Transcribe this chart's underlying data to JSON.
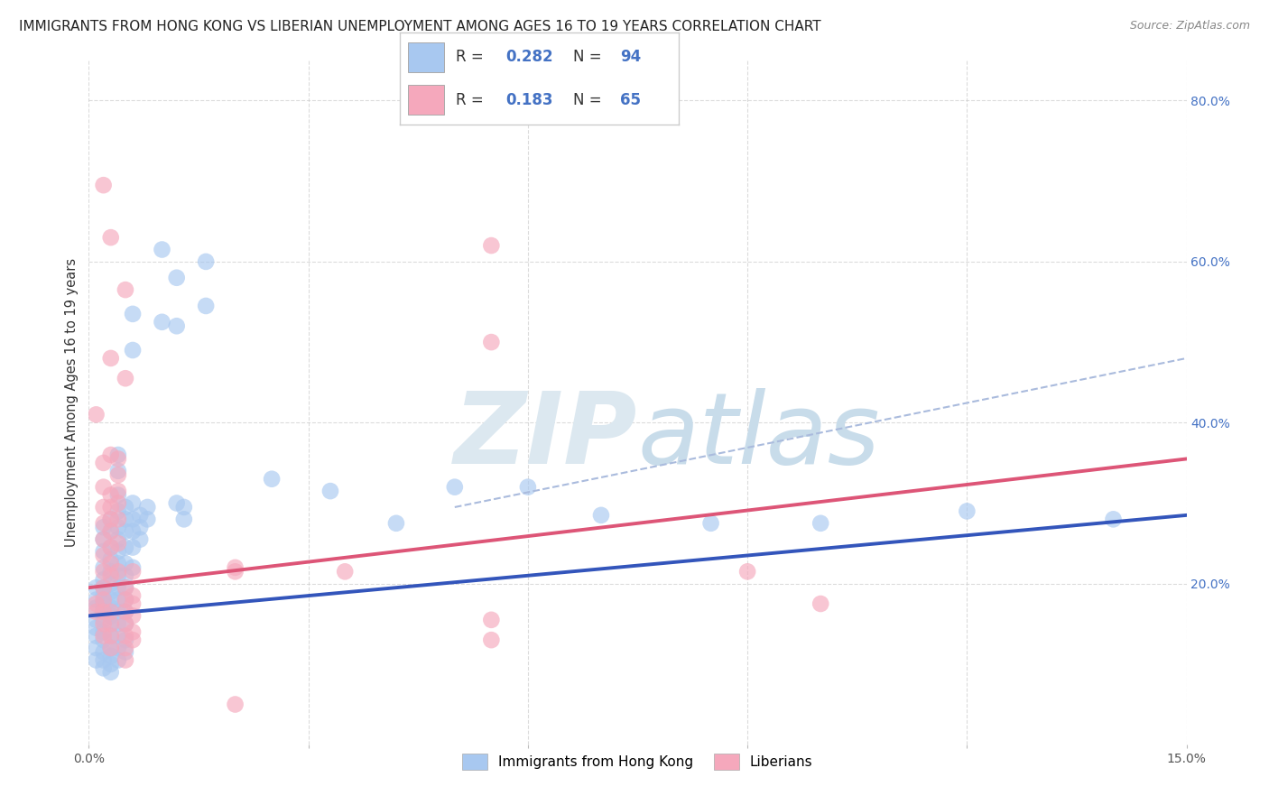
{
  "title": "IMMIGRANTS FROM HONG KONG VS LIBERIAN UNEMPLOYMENT AMONG AGES 16 TO 19 YEARS CORRELATION CHART",
  "source": "Source: ZipAtlas.com",
  "ylabel": "Unemployment Among Ages 16 to 19 years",
  "xlim": [
    0.0,
    0.15
  ],
  "ylim": [
    0.0,
    0.85
  ],
  "xticks": [
    0.0,
    0.03,
    0.06,
    0.09,
    0.12,
    0.15
  ],
  "xtick_labels": [
    "0.0%",
    "",
    "",
    "",
    "",
    "15.0%"
  ],
  "ytick_labels": [
    "20.0%",
    "40.0%",
    "60.0%",
    "80.0%"
  ],
  "yticks": [
    0.2,
    0.4,
    0.6,
    0.8
  ],
  "hk_color": "#a8c8f0",
  "lib_color": "#f5a8bc",
  "hk_line_color": "#3355bb",
  "lib_line_color": "#dd5577",
  "dash_color": "#aabbdd",
  "background_color": "#ffffff",
  "grid_color": "#cccccc",
  "watermark_color": "#d8e4f0",
  "hk_line": [
    0.0,
    0.16,
    0.15,
    0.285
  ],
  "lib_line": [
    0.0,
    0.195,
    0.15,
    0.355
  ],
  "dash_line": [
    0.05,
    0.295,
    0.15,
    0.48
  ],
  "hk_scatter": [
    [
      0.001,
      0.195
    ],
    [
      0.001,
      0.18
    ],
    [
      0.001,
      0.17
    ],
    [
      0.001,
      0.155
    ],
    [
      0.001,
      0.145
    ],
    [
      0.001,
      0.135
    ],
    [
      0.001,
      0.12
    ],
    [
      0.001,
      0.105
    ],
    [
      0.002,
      0.27
    ],
    [
      0.002,
      0.255
    ],
    [
      0.002,
      0.24
    ],
    [
      0.002,
      0.22
    ],
    [
      0.002,
      0.205
    ],
    [
      0.002,
      0.195
    ],
    [
      0.002,
      0.185
    ],
    [
      0.002,
      0.175
    ],
    [
      0.002,
      0.165
    ],
    [
      0.002,
      0.155
    ],
    [
      0.002,
      0.14
    ],
    [
      0.002,
      0.13
    ],
    [
      0.002,
      0.115
    ],
    [
      0.002,
      0.105
    ],
    [
      0.002,
      0.095
    ],
    [
      0.003,
      0.28
    ],
    [
      0.003,
      0.265
    ],
    [
      0.003,
      0.245
    ],
    [
      0.003,
      0.23
    ],
    [
      0.003,
      0.215
    ],
    [
      0.003,
      0.2
    ],
    [
      0.003,
      0.19
    ],
    [
      0.003,
      0.18
    ],
    [
      0.003,
      0.17
    ],
    [
      0.003,
      0.16
    ],
    [
      0.003,
      0.15
    ],
    [
      0.003,
      0.135
    ],
    [
      0.003,
      0.12
    ],
    [
      0.003,
      0.11
    ],
    [
      0.003,
      0.1
    ],
    [
      0.003,
      0.09
    ],
    [
      0.004,
      0.36
    ],
    [
      0.004,
      0.34
    ],
    [
      0.004,
      0.31
    ],
    [
      0.004,
      0.29
    ],
    [
      0.004,
      0.27
    ],
    [
      0.004,
      0.255
    ],
    [
      0.004,
      0.24
    ],
    [
      0.004,
      0.225
    ],
    [
      0.004,
      0.21
    ],
    [
      0.004,
      0.195
    ],
    [
      0.004,
      0.18
    ],
    [
      0.004,
      0.165
    ],
    [
      0.004,
      0.15
    ],
    [
      0.004,
      0.135
    ],
    [
      0.004,
      0.12
    ],
    [
      0.004,
      0.105
    ],
    [
      0.005,
      0.295
    ],
    [
      0.005,
      0.28
    ],
    [
      0.005,
      0.265
    ],
    [
      0.005,
      0.245
    ],
    [
      0.005,
      0.225
    ],
    [
      0.005,
      0.21
    ],
    [
      0.005,
      0.195
    ],
    [
      0.005,
      0.18
    ],
    [
      0.005,
      0.165
    ],
    [
      0.005,
      0.15
    ],
    [
      0.005,
      0.13
    ],
    [
      0.005,
      0.115
    ],
    [
      0.006,
      0.535
    ],
    [
      0.006,
      0.49
    ],
    [
      0.006,
      0.3
    ],
    [
      0.006,
      0.28
    ],
    [
      0.006,
      0.265
    ],
    [
      0.006,
      0.245
    ],
    [
      0.006,
      0.22
    ],
    [
      0.007,
      0.285
    ],
    [
      0.007,
      0.27
    ],
    [
      0.007,
      0.255
    ],
    [
      0.008,
      0.295
    ],
    [
      0.008,
      0.28
    ],
    [
      0.01,
      0.615
    ],
    [
      0.01,
      0.525
    ],
    [
      0.012,
      0.58
    ],
    [
      0.012,
      0.52
    ],
    [
      0.012,
      0.3
    ],
    [
      0.013,
      0.295
    ],
    [
      0.013,
      0.28
    ],
    [
      0.016,
      0.6
    ],
    [
      0.016,
      0.545
    ],
    [
      0.025,
      0.33
    ],
    [
      0.033,
      0.315
    ],
    [
      0.042,
      0.275
    ],
    [
      0.05,
      0.32
    ],
    [
      0.06,
      0.32
    ],
    [
      0.07,
      0.285
    ],
    [
      0.085,
      0.275
    ],
    [
      0.1,
      0.275
    ],
    [
      0.12,
      0.29
    ],
    [
      0.14,
      0.28
    ]
  ],
  "lib_scatter": [
    [
      0.001,
      0.41
    ],
    [
      0.001,
      0.175
    ],
    [
      0.001,
      0.165
    ],
    [
      0.002,
      0.695
    ],
    [
      0.002,
      0.35
    ],
    [
      0.002,
      0.32
    ],
    [
      0.002,
      0.295
    ],
    [
      0.002,
      0.275
    ],
    [
      0.002,
      0.255
    ],
    [
      0.002,
      0.235
    ],
    [
      0.002,
      0.215
    ],
    [
      0.002,
      0.195
    ],
    [
      0.002,
      0.18
    ],
    [
      0.002,
      0.165
    ],
    [
      0.002,
      0.15
    ],
    [
      0.002,
      0.135
    ],
    [
      0.003,
      0.63
    ],
    [
      0.003,
      0.48
    ],
    [
      0.003,
      0.36
    ],
    [
      0.003,
      0.31
    ],
    [
      0.003,
      0.295
    ],
    [
      0.003,
      0.28
    ],
    [
      0.003,
      0.265
    ],
    [
      0.003,
      0.245
    ],
    [
      0.003,
      0.225
    ],
    [
      0.003,
      0.21
    ],
    [
      0.003,
      0.165
    ],
    [
      0.003,
      0.15
    ],
    [
      0.003,
      0.135
    ],
    [
      0.003,
      0.12
    ],
    [
      0.004,
      0.355
    ],
    [
      0.004,
      0.335
    ],
    [
      0.004,
      0.315
    ],
    [
      0.004,
      0.3
    ],
    [
      0.004,
      0.28
    ],
    [
      0.004,
      0.25
    ],
    [
      0.004,
      0.215
    ],
    [
      0.005,
      0.565
    ],
    [
      0.005,
      0.455
    ],
    [
      0.005,
      0.195
    ],
    [
      0.005,
      0.18
    ],
    [
      0.005,
      0.165
    ],
    [
      0.005,
      0.15
    ],
    [
      0.005,
      0.135
    ],
    [
      0.005,
      0.12
    ],
    [
      0.005,
      0.105
    ],
    [
      0.006,
      0.175
    ],
    [
      0.006,
      0.16
    ],
    [
      0.006,
      0.14
    ],
    [
      0.006,
      0.13
    ],
    [
      0.006,
      0.215
    ],
    [
      0.006,
      0.185
    ],
    [
      0.02,
      0.215
    ],
    [
      0.02,
      0.22
    ],
    [
      0.02,
      0.05
    ],
    [
      0.035,
      0.215
    ],
    [
      0.055,
      0.62
    ],
    [
      0.055,
      0.5
    ],
    [
      0.055,
      0.155
    ],
    [
      0.055,
      0.13
    ],
    [
      0.09,
      0.215
    ],
    [
      0.1,
      0.175
    ]
  ]
}
